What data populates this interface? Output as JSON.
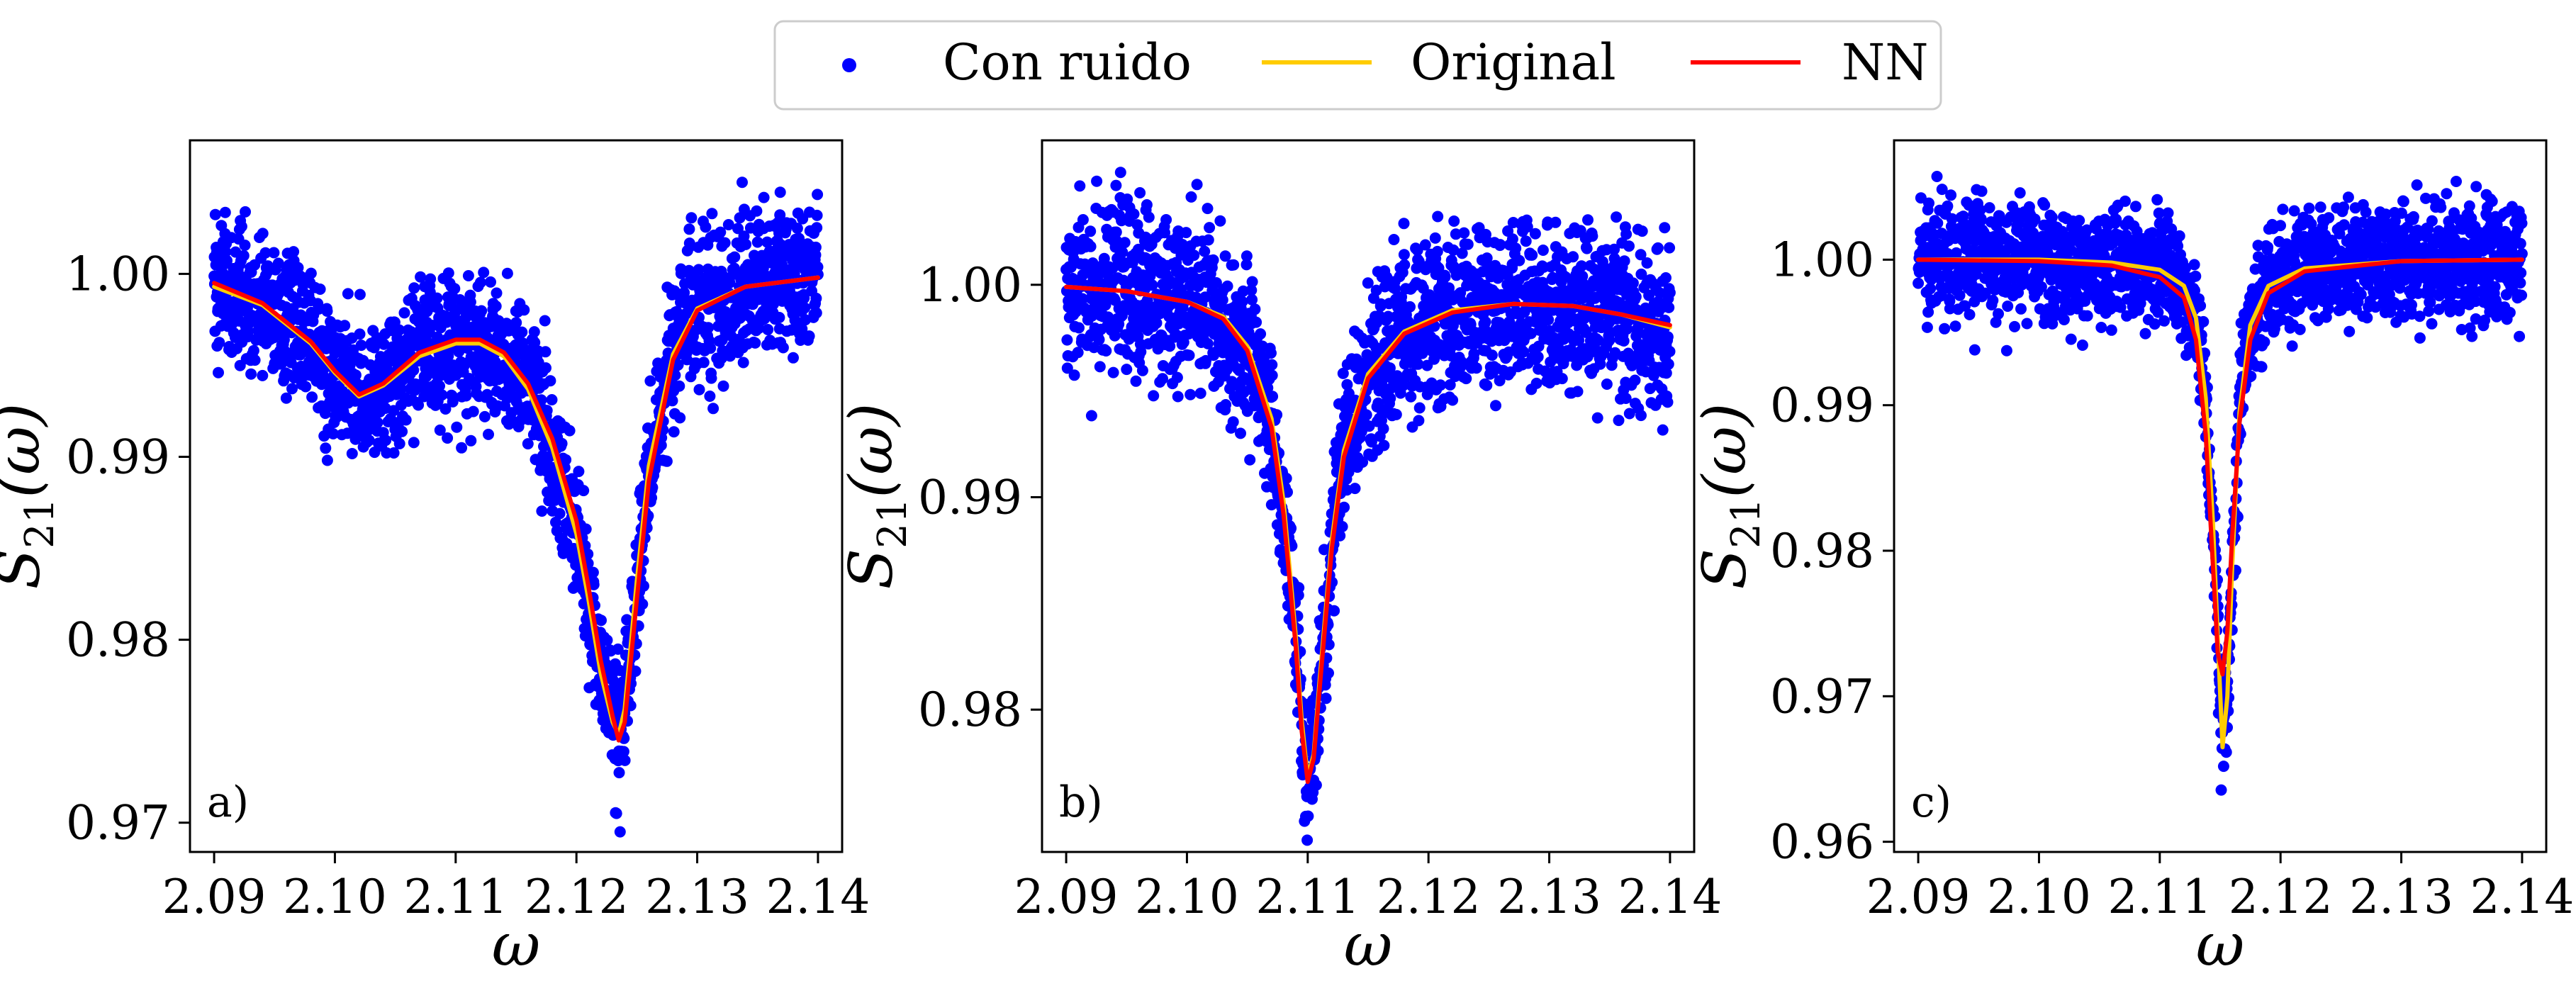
{
  "legend": {
    "entries": [
      {
        "label": "Con ruido",
        "kind": "scatter",
        "color": "#0000ff"
      },
      {
        "label": "Original",
        "kind": "line",
        "color": "#ffcc00"
      },
      {
        "label": "NN",
        "kind": "line",
        "color": "#ff0000"
      }
    ]
  },
  "chart_data": [
    {
      "type": "scatter",
      "panel_label": "a)",
      "xlabel": "ω",
      "ylabel_main": "S",
      "ylabel_sub": "21",
      "ylabel_tail": "(ω)",
      "xlim": [
        2.088,
        2.142
      ],
      "ylim": [
        0.9684,
        1.0073
      ],
      "xticks": [
        2.09,
        2.1,
        2.11,
        2.12,
        2.13,
        2.14
      ],
      "xtick_labels": [
        "2.09",
        "2.10",
        "2.11",
        "2.12",
        "2.13",
        "2.14"
      ],
      "yticks": [
        0.97,
        0.98,
        0.99,
        1.0
      ],
      "ytick_labels": [
        "0.97",
        "0.98",
        "0.99",
        "1.00"
      ],
      "grid": false,
      "noise_std": 0.0019,
      "series": [
        {
          "name": "Original",
          "color": "#ffcc00",
          "x": [
            2.09,
            2.094,
            2.098,
            2.1,
            2.102,
            2.104,
            2.107,
            2.11,
            2.112,
            2.114,
            2.116,
            2.118,
            2.12,
            2.121,
            2.122,
            2.123,
            2.1235,
            2.124,
            2.125,
            2.126,
            2.128,
            2.13,
            2.134,
            2.14
          ],
          "y": [
            0.9993,
            0.9983,
            0.9962,
            0.9946,
            0.9933,
            0.9939,
            0.9955,
            0.9962,
            0.9962,
            0.9955,
            0.9937,
            0.9905,
            0.9858,
            0.9822,
            0.9782,
            0.9755,
            0.9748,
            0.9762,
            0.9832,
            0.9895,
            0.9956,
            0.9981,
            0.9993,
            0.9998
          ]
        },
        {
          "name": "NN",
          "color": "#ff0000",
          "x": [
            2.09,
            2.094,
            2.098,
            2.1,
            2.102,
            2.104,
            2.107,
            2.11,
            2.112,
            2.114,
            2.116,
            2.118,
            2.12,
            2.121,
            2.122,
            2.123,
            2.1235,
            2.124,
            2.125,
            2.126,
            2.128,
            2.13,
            2.134,
            2.14
          ],
          "y": [
            0.9995,
            0.9984,
            0.9963,
            0.9947,
            0.9934,
            0.994,
            0.9957,
            0.9964,
            0.9964,
            0.9957,
            0.994,
            0.991,
            0.9865,
            0.9829,
            0.9789,
            0.9758,
            0.9745,
            0.9755,
            0.9822,
            0.9887,
            0.9953,
            0.998,
            0.9993,
            0.9998
          ]
        }
      ]
    },
    {
      "type": "scatter",
      "panel_label": "b)",
      "xlabel": "ω",
      "ylabel_main": "S",
      "ylabel_sub": "21",
      "ylabel_tail": "(ω)",
      "xlim": [
        2.088,
        2.142
      ],
      "ylim": [
        0.9733,
        1.0068
      ],
      "xticks": [
        2.09,
        2.1,
        2.11,
        2.12,
        2.13,
        2.14
      ],
      "xtick_labels": [
        "2.09",
        "2.10",
        "2.11",
        "2.12",
        "2.13",
        "2.14"
      ],
      "yticks": [
        0.98,
        0.99,
        1.0
      ],
      "ytick_labels": [
        "0.98",
        "0.99",
        "1.00"
      ],
      "grid": false,
      "noise_std": 0.0019,
      "series": [
        {
          "name": "Original",
          "color": "#ffcc00",
          "x": [
            2.09,
            2.095,
            2.1,
            2.103,
            2.105,
            2.107,
            2.108,
            2.109,
            2.1095,
            2.11,
            2.1105,
            2.111,
            2.112,
            2.113,
            2.115,
            2.118,
            2.122,
            2.127,
            2.132,
            2.136,
            2.14
          ],
          "y": [
            0.9999,
            0.9997,
            0.9992,
            0.9985,
            0.9971,
            0.9937,
            0.9898,
            0.9835,
            0.9795,
            0.9768,
            0.9779,
            0.9815,
            0.988,
            0.9922,
            0.9958,
            0.9978,
            0.9988,
            0.9991,
            0.999,
            0.9986,
            0.998
          ]
        },
        {
          "name": "NN",
          "color": "#ff0000",
          "x": [
            2.09,
            2.095,
            2.1,
            2.103,
            2.105,
            2.107,
            2.108,
            2.109,
            2.1095,
            2.11,
            2.1105,
            2.111,
            2.112,
            2.113,
            2.115,
            2.118,
            2.122,
            2.127,
            2.132,
            2.136,
            2.14
          ],
          "y": [
            0.9999,
            0.9997,
            0.9992,
            0.9984,
            0.9969,
            0.9933,
            0.9892,
            0.983,
            0.979,
            0.9766,
            0.9777,
            0.9811,
            0.9876,
            0.9919,
            0.9956,
            0.9977,
            0.9987,
            0.9991,
            0.999,
            0.9986,
            0.9981
          ]
        }
      ]
    },
    {
      "type": "scatter",
      "panel_label": "c)",
      "xlabel": "ω",
      "ylabel_main": "S",
      "ylabel_sub": "21",
      "ylabel_tail": "(ω)",
      "xlim": [
        2.088,
        2.142
      ],
      "ylim": [
        0.9593,
        1.0082
      ],
      "xticks": [
        2.09,
        2.1,
        2.11,
        2.12,
        2.13,
        2.14
      ],
      "xtick_labels": [
        "2.09",
        "2.10",
        "2.11",
        "2.12",
        "2.13",
        "2.14"
      ],
      "yticks": [
        0.96,
        0.97,
        0.98,
        0.99,
        1.0
      ],
      "ytick_labels": [
        "0.96",
        "0.97",
        "0.98",
        "0.99",
        "1.00"
      ],
      "grid": false,
      "noise_std": 0.0019,
      "series": [
        {
          "name": "Original",
          "color": "#ffcc00",
          "x": [
            2.09,
            2.1,
            2.106,
            2.11,
            2.112,
            2.113,
            2.1138,
            2.1144,
            2.1148,
            2.1152,
            2.1156,
            2.116,
            2.1166,
            2.1175,
            2.119,
            2.122,
            2.13,
            2.14
          ],
          "y": [
            1.0,
            1.0,
            0.9998,
            0.9993,
            0.9982,
            0.996,
            0.9905,
            0.982,
            0.974,
            0.9665,
            0.97,
            0.979,
            0.9895,
            0.9955,
            0.9982,
            0.9994,
            0.9999,
            1.0
          ]
        },
        {
          "name": "NN",
          "color": "#ff0000",
          "x": [
            2.09,
            2.1,
            2.106,
            2.11,
            2.112,
            2.113,
            2.1138,
            2.1144,
            2.1148,
            2.1152,
            2.1156,
            2.116,
            2.1166,
            2.1175,
            2.119,
            2.122,
            2.13,
            2.14
          ],
          "y": [
            1.0,
            0.9999,
            0.9996,
            0.9988,
            0.9974,
            0.9945,
            0.988,
            0.979,
            0.973,
            0.9715,
            0.9745,
            0.981,
            0.9888,
            0.9945,
            0.9977,
            0.9992,
            0.9999,
            1.0
          ]
        }
      ]
    }
  ]
}
